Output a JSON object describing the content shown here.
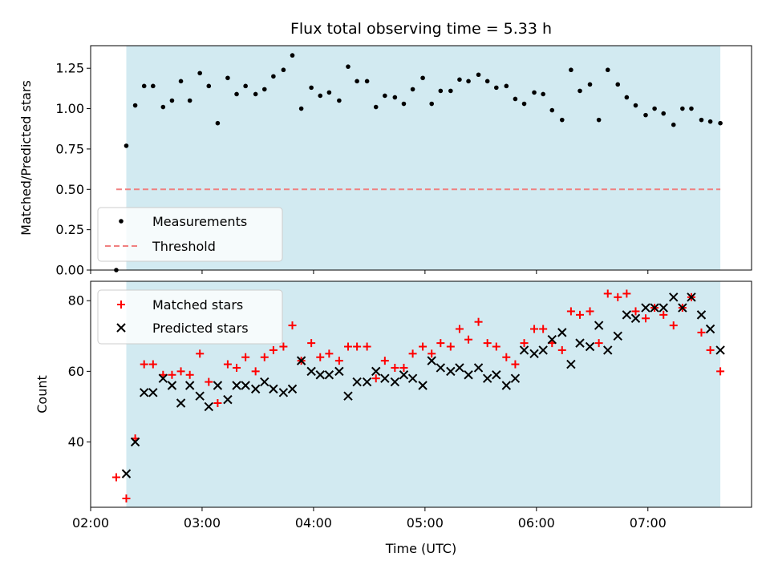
{
  "colors": {
    "shade": "#add8e6",
    "measurement": "#000000",
    "threshold": "#f08080",
    "matched": "#ff0000",
    "predicted": "#000000"
  },
  "chart_data": [
    {
      "type": "scatter",
      "title": "Flux total observing time = 5.33 h",
      "xlabel": "",
      "ylabel": "Matched/Predicted stars",
      "xlim": [
        2.0,
        7.93
      ],
      "ylim": [
        0.0,
        1.39
      ],
      "yticks": [
        0.0,
        0.25,
        0.5,
        0.75,
        1.0,
        1.25
      ],
      "ytick_labels": [
        "0.00",
        "0.25",
        "0.50",
        "0.75",
        "1.00",
        "1.25"
      ],
      "xticks": [
        2,
        3,
        4,
        5,
        6,
        7
      ],
      "shaded_interval": [
        2.32,
        7.65
      ],
      "legend_position": "lower-left",
      "series": [
        {
          "name": "Measurements",
          "marker": "dot",
          "x": [
            2.23,
            2.32,
            2.4,
            2.48,
            2.56,
            2.65,
            2.73,
            2.81,
            2.89,
            2.98,
            3.06,
            3.14,
            3.23,
            3.31,
            3.39,
            3.48,
            3.56,
            3.64,
            3.73,
            3.81,
            3.89,
            3.98,
            4.06,
            4.14,
            4.23,
            4.31,
            4.39,
            4.48,
            4.56,
            4.64,
            4.73,
            4.81,
            4.89,
            4.98,
            5.06,
            5.14,
            5.23,
            5.31,
            5.39,
            5.48,
            5.56,
            5.64,
            5.73,
            5.81,
            5.89,
            5.98,
            6.06,
            6.14,
            6.23,
            6.31,
            6.39,
            6.48,
            6.56,
            6.64,
            6.73,
            6.81,
            6.89,
            6.98,
            7.06,
            7.14,
            7.23,
            7.31,
            7.39,
            7.48,
            7.56,
            7.65
          ],
          "y": [
            0.0,
            0.77,
            1.02,
            1.14,
            1.14,
            1.01,
            1.05,
            1.17,
            1.05,
            1.22,
            1.14,
            0.91,
            1.19,
            1.09,
            1.14,
            1.09,
            1.12,
            1.2,
            1.24,
            1.33,
            1.0,
            1.13,
            1.08,
            1.1,
            1.05,
            1.26,
            1.17,
            1.17,
            1.01,
            1.08,
            1.07,
            1.03,
            1.12,
            1.19,
            1.03,
            1.11,
            1.11,
            1.18,
            1.17,
            1.21,
            1.17,
            1.13,
            1.14,
            1.06,
            1.03,
            1.1,
            1.09,
            0.99,
            0.93,
            1.24,
            1.11,
            1.15,
            0.93,
            1.24,
            1.15,
            1.07,
            1.02,
            0.96,
            1.0,
            0.97,
            0.9,
            1.0,
            1.0,
            0.93,
            0.92,
            0.91
          ]
        },
        {
          "name": "Threshold",
          "style": "dashed",
          "x": [
            2.23,
            7.65
          ],
          "y": [
            0.5,
            0.5
          ]
        }
      ]
    },
    {
      "type": "scatter",
      "title": "",
      "xlabel": "Time (UTC)",
      "ylabel": "Count",
      "xlim": [
        2.0,
        7.93
      ],
      "ylim": [
        21.5,
        85.5
      ],
      "yticks": [
        40,
        60,
        80
      ],
      "ytick_labels": [
        "40",
        "60",
        "80"
      ],
      "xticks": [
        2,
        3,
        4,
        5,
        6,
        7
      ],
      "xtick_labels": [
        "02:00",
        "03:00",
        "04:00",
        "05:00",
        "06:00",
        "07:00"
      ],
      "shaded_interval": [
        2.32,
        7.65
      ],
      "legend_position": "upper-left",
      "series": [
        {
          "name": "Matched stars",
          "marker": "plus",
          "x": [
            2.23,
            2.32,
            2.4,
            2.48,
            2.56,
            2.65,
            2.73,
            2.81,
            2.89,
            2.98,
            3.06,
            3.14,
            3.23,
            3.31,
            3.39,
            3.48,
            3.56,
            3.64,
            3.73,
            3.81,
            3.89,
            3.98,
            4.06,
            4.14,
            4.23,
            4.31,
            4.39,
            4.48,
            4.56,
            4.64,
            4.73,
            4.81,
            4.89,
            4.98,
            5.06,
            5.14,
            5.23,
            5.31,
            5.39,
            5.48,
            5.56,
            5.64,
            5.73,
            5.81,
            5.89,
            5.98,
            6.06,
            6.14,
            6.23,
            6.31,
            6.39,
            6.48,
            6.56,
            6.64,
            6.73,
            6.81,
            6.89,
            6.98,
            7.06,
            7.14,
            7.23,
            7.31,
            7.39,
            7.48,
            7.56,
            7.65
          ],
          "y": [
            30,
            24,
            41,
            62,
            62,
            59,
            59,
            60,
            59,
            65,
            57,
            51,
            62,
            61,
            64,
            60,
            64,
            66,
            67,
            73,
            63,
            68,
            64,
            65,
            63,
            67,
            67,
            67,
            58,
            63,
            61,
            61,
            65,
            67,
            65,
            68,
            67,
            72,
            69,
            74,
            68,
            67,
            64,
            62,
            68,
            72,
            72,
            68,
            66,
            77,
            76,
            77,
            68,
            82,
            81,
            82,
            77,
            75,
            78,
            76,
            73,
            78,
            81,
            71,
            66,
            60
          ]
        },
        {
          "name": "Predicted stars",
          "marker": "x",
          "x": [
            2.23,
            2.32,
            2.4,
            2.48,
            2.56,
            2.65,
            2.73,
            2.81,
            2.89,
            2.98,
            3.06,
            3.14,
            3.23,
            3.31,
            3.39,
            3.48,
            3.56,
            3.64,
            3.73,
            3.81,
            3.89,
            3.98,
            4.06,
            4.14,
            4.23,
            4.31,
            4.39,
            4.48,
            4.56,
            4.64,
            4.73,
            4.81,
            4.89,
            4.98,
            5.06,
            5.14,
            5.23,
            5.31,
            5.39,
            5.48,
            5.56,
            5.64,
            5.73,
            5.81,
            5.89,
            5.98,
            6.06,
            6.14,
            6.23,
            6.31,
            6.39,
            6.48,
            6.56,
            6.64,
            6.73,
            6.81,
            6.89,
            6.98,
            7.06,
            7.14,
            7.23,
            7.31,
            7.39,
            7.48,
            7.56,
            7.65
          ],
          "y": [
            null,
            31,
            40,
            54,
            54,
            58,
            56,
            51,
            56,
            53,
            50,
            56,
            52,
            56,
            56,
            55,
            57,
            55,
            54,
            55,
            63,
            60,
            59,
            59,
            60,
            53,
            57,
            57,
            60,
            58,
            57,
            59,
            58,
            56,
            63,
            61,
            60,
            61,
            59,
            61,
            58,
            59,
            56,
            58,
            66,
            65,
            66,
            69,
            71,
            62,
            68,
            67,
            73,
            66,
            70,
            76,
            75,
            78,
            78,
            78,
            81,
            78,
            81,
            76,
            72,
            66
          ]
        }
      ]
    }
  ]
}
